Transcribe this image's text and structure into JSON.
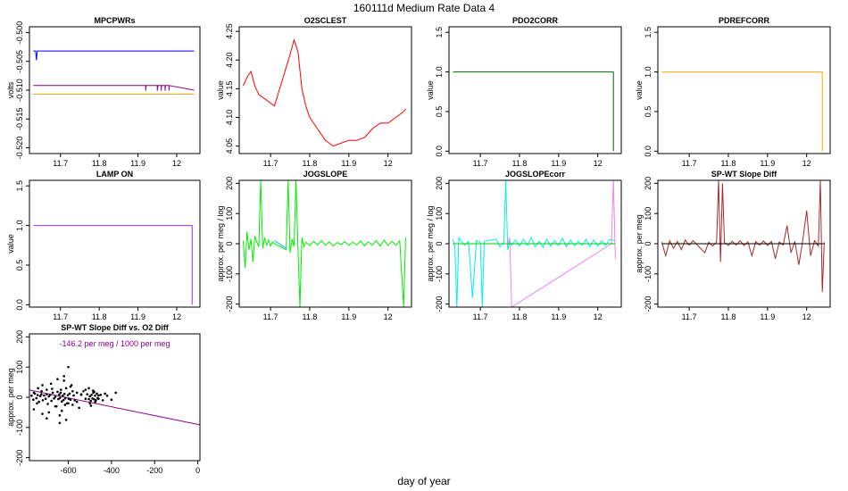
{
  "page": {
    "title": "160111d   Medium Rate Data 4",
    "xlabel": "day of year"
  },
  "chart_data": [
    {
      "type": "line",
      "title": "MPCPWRs",
      "ylabel": "volts",
      "xlim": [
        11.62,
        12.06
      ],
      "ylim": [
        -0.521,
        -0.499
      ],
      "xticks": [
        11.7,
        11.8,
        11.9,
        12.0
      ],
      "yticks": [
        -0.5,
        -0.505,
        -0.51,
        -0.515,
        -0.52
      ],
      "ytick_labels": [
        "-0.500",
        "-0.505",
        "-0.510",
        "-0.515",
        "-0.520"
      ],
      "series": [
        {
          "color": "#0000ff",
          "x": [
            11.63,
            11.636,
            11.638,
            11.64,
            11.643,
            12.045
          ],
          "y": [
            -0.5032,
            -0.5032,
            -0.5048,
            -0.5032,
            -0.5032,
            -0.5032
          ]
        },
        {
          "color": "#8b008b",
          "x": [
            11.63,
            11.92,
            11.92,
            11.921,
            11.95,
            11.95,
            11.952,
            11.96,
            11.96,
            11.961,
            11.97,
            11.97,
            11.971,
            11.98,
            11.98,
            11.981,
            12.045
          ],
          "y": [
            -0.5092,
            -0.5092,
            -0.5101,
            -0.5092,
            -0.5092,
            -0.5101,
            -0.5092,
            -0.5092,
            -0.5101,
            -0.5092,
            -0.5092,
            -0.5101,
            -0.5092,
            -0.5092,
            -0.5101,
            -0.5092,
            -0.51
          ]
        },
        {
          "color": "#ffa500",
          "x": [
            11.63,
            12.045
          ],
          "y": [
            -0.5107,
            -0.5107
          ]
        }
      ]
    },
    {
      "type": "line",
      "title": "O2SCLEST",
      "ylabel": "value",
      "xlim": [
        11.62,
        12.06
      ],
      "ylim": [
        4.037,
        4.258
      ],
      "xticks": [
        11.7,
        11.8,
        11.9,
        12.0
      ],
      "yticks": [
        4.05,
        4.1,
        4.15,
        4.2,
        4.25
      ],
      "ytick_labels": [
        "4.05",
        "4.10",
        "4.15",
        "4.20",
        "4.25"
      ],
      "series": [
        {
          "color": "#ff0000",
          "x": [
            11.63,
            11.64,
            11.65,
            11.66,
            11.67,
            11.68,
            11.69,
            11.7,
            11.71,
            11.75,
            11.76,
            11.77,
            11.78,
            11.79,
            11.8,
            11.82,
            11.84,
            11.86,
            11.88,
            11.9,
            11.92,
            11.94,
            11.96,
            11.98,
            12.0,
            12.02,
            12.04,
            12.045
          ],
          "y": [
            4.155,
            4.17,
            4.18,
            4.155,
            4.14,
            4.135,
            4.13,
            4.125,
            4.12,
            4.21,
            4.235,
            4.215,
            4.15,
            4.12,
            4.1,
            4.08,
            4.06,
            4.05,
            4.055,
            4.06,
            4.06,
            4.065,
            4.08,
            4.09,
            4.09,
            4.1,
            4.11,
            4.115
          ]
        }
      ]
    },
    {
      "type": "line",
      "title": "PDO2CORR",
      "ylabel": "value",
      "xlim": [
        11.62,
        12.06
      ],
      "ylim": [
        -0.03,
        1.57
      ],
      "xticks": [
        11.7,
        11.8,
        11.9,
        12.0
      ],
      "yticks": [
        0.0,
        0.5,
        1.0,
        1.5
      ],
      "ytick_labels": [
        "0.0",
        "0.5",
        "1.0",
        "1.5"
      ],
      "series": [
        {
          "color": "#006400",
          "x": [
            11.63,
            12.04,
            12.04
          ],
          "y": [
            1.0,
            1.0,
            0.0
          ]
        }
      ]
    },
    {
      "type": "line",
      "title": "PDREFCORR",
      "ylabel": "value",
      "xlim": [
        11.62,
        12.06
      ],
      "ylim": [
        -0.03,
        1.57
      ],
      "xticks": [
        11.7,
        11.8,
        11.9,
        12.0
      ],
      "yticks": [
        0.0,
        0.5,
        1.0,
        1.5
      ],
      "ytick_labels": [
        "0.0",
        "0.5",
        "1.0",
        "1.5"
      ],
      "series": [
        {
          "color": "#ffa500",
          "x": [
            11.63,
            12.04,
            12.04
          ],
          "y": [
            1.0,
            1.0,
            0.0
          ]
        }
      ]
    },
    {
      "type": "line",
      "title": "LAMP ON",
      "ylabel": "value",
      "xlim": [
        11.62,
        12.06
      ],
      "ylim": [
        -0.03,
        1.57
      ],
      "xticks": [
        11.7,
        11.8,
        11.9,
        12.0
      ],
      "yticks": [
        0.0,
        0.5,
        1.0,
        1.5
      ],
      "ytick_labels": [
        "0.0",
        "0.5",
        "1.0",
        "1.5"
      ],
      "series": [
        {
          "color": "#9b30ff",
          "x": [
            11.63,
            12.04,
            12.04
          ],
          "y": [
            1.0,
            1.0,
            0.0
          ]
        }
      ]
    },
    {
      "type": "line",
      "title": "JOGSLOPE",
      "ylabel": "approx. per meg / log",
      "xlim": [
        11.62,
        12.06
      ],
      "ylim": [
        -210,
        210
      ],
      "xticks": [
        11.7,
        11.8,
        11.9,
        12.0
      ],
      "yticks": [
        -200,
        -100,
        0,
        100,
        200
      ],
      "ytick_labels": [
        "-200",
        "-100",
        "0",
        "100",
        "200"
      ],
      "series": [
        {
          "color": "#00ee00",
          "x": [
            11.63,
            11.635,
            11.64,
            11.645,
            11.65,
            11.655,
            11.66,
            11.665,
            11.67,
            11.675,
            11.68,
            11.685,
            11.69,
            11.695,
            11.7,
            11.705,
            11.71,
            11.74,
            11.745,
            11.75,
            11.755,
            11.76,
            11.765,
            11.77,
            11.775,
            11.78,
            11.785,
            11.79,
            11.8,
            11.81,
            11.82,
            11.83,
            11.84,
            11.85,
            11.86,
            11.87,
            11.88,
            11.89,
            11.9,
            11.91,
            11.92,
            11.93,
            11.94,
            11.95,
            11.96,
            11.97,
            11.98,
            11.99,
            12.0,
            12.01,
            12.02,
            12.03,
            12.04,
            12.045
          ],
          "y": [
            10,
            -80,
            40,
            -20,
            15,
            -60,
            25,
            5,
            -10,
            210,
            -15,
            20,
            -5,
            12,
            -8,
            6,
            0,
            -20,
            210,
            -30,
            15,
            -10,
            210,
            -15,
            -210,
            20,
            -10,
            5,
            -6,
            8,
            -4,
            10,
            -5,
            6,
            -8,
            4,
            -3,
            7,
            -6,
            5,
            -4,
            9,
            -7,
            6,
            -5,
            10,
            -8,
            12,
            -6,
            8,
            -5,
            10,
            -210,
            20
          ]
        },
        {
          "color": "#00bfff",
          "x": [
            11.71,
            11.74
          ],
          "y": [
            10,
            -15
          ]
        }
      ]
    },
    {
      "type": "line",
      "title": "JOGSLOPEcorr",
      "ylabel": "approx. per meg / log",
      "xlim": [
        11.62,
        12.06
      ],
      "ylim": [
        -210,
        210
      ],
      "xticks": [
        11.7,
        11.8,
        11.9,
        12.0
      ],
      "yticks": [
        -200,
        -100,
        0,
        100,
        200
      ],
      "ytick_labels": [
        "-200",
        "-100",
        "0",
        "100",
        "200"
      ],
      "series": [
        {
          "color": "#00eeee",
          "x": [
            11.63,
            11.635,
            11.64,
            11.645,
            11.65,
            11.66,
            11.67,
            11.68,
            11.69,
            11.7,
            11.705,
            11.71,
            11.74,
            11.75,
            11.76,
            11.765,
            11.77,
            11.775,
            11.78,
            11.79,
            11.8,
            11.81,
            11.82,
            11.83,
            11.84,
            11.85,
            11.86,
            11.87,
            11.88,
            11.89,
            11.9,
            11.91,
            11.92,
            11.93,
            11.94,
            11.95,
            11.96,
            11.97,
            11.98,
            11.99,
            12.0,
            12.01,
            12.02,
            12.03,
            12.045
          ],
          "y": [
            15,
            -10,
            -210,
            20,
            10,
            -5,
            8,
            -180,
            10,
            5,
            -210,
            8,
            15,
            -10,
            5,
            210,
            -20,
            10,
            -5,
            12,
            -8,
            15,
            -6,
            20,
            -10,
            8,
            -12,
            15,
            -8,
            10,
            -6,
            18,
            -10,
            12,
            -7,
            9,
            -5,
            15,
            -10,
            12,
            -8,
            10,
            -6,
            14,
            10
          ]
        },
        {
          "color": "#ee82ee",
          "x": [
            11.77,
            11.775,
            11.78,
            12.035,
            12.04,
            12.045
          ],
          "y": [
            0,
            20,
            -210,
            0,
            210,
            -50
          ]
        },
        {
          "color": "#00cc00",
          "x": [
            11.63,
            12.045
          ],
          "y": [
            0,
            0
          ]
        }
      ]
    },
    {
      "type": "line",
      "title": "SP-WT Slope Diff",
      "ylabel": "approx. per meg",
      "xlim": [
        11.62,
        12.06
      ],
      "ylim": [
        -210,
        210
      ],
      "xticks": [
        11.7,
        11.8,
        11.9,
        12.0
      ],
      "yticks": [
        -200,
        -100,
        0,
        100,
        200
      ],
      "ytick_labels": [
        "-200",
        "-100",
        "0",
        "100",
        "200"
      ],
      "series": [
        {
          "color": "#a52a2a",
          "x": [
            11.63,
            11.64,
            11.65,
            11.66,
            11.67,
            11.68,
            11.69,
            11.7,
            11.71,
            11.74,
            11.75,
            11.76,
            11.77,
            11.775,
            11.78,
            11.785,
            11.79,
            11.8,
            11.81,
            11.82,
            11.83,
            11.84,
            11.85,
            11.86,
            11.87,
            11.88,
            11.89,
            11.9,
            11.91,
            11.92,
            11.93,
            11.94,
            11.95,
            11.96,
            11.97,
            11.98,
            11.99,
            12.0,
            12.01,
            12.02,
            12.03,
            12.035,
            12.04,
            12.045
          ],
          "y": [
            5,
            -40,
            10,
            -15,
            8,
            -20,
            12,
            -5,
            10,
            -30,
            5,
            -8,
            6,
            210,
            -60,
            200,
            4,
            -6,
            8,
            -4,
            10,
            -6,
            6,
            -40,
            7,
            -5,
            9,
            -6,
            8,
            -50,
            6,
            -4,
            60,
            -30,
            8,
            -70,
            10,
            110,
            -40,
            10,
            -8,
            210,
            -160,
            5
          ]
        },
        {
          "color": "#000000",
          "x": [
            11.63,
            12.045
          ],
          "y": [
            0,
            0
          ]
        }
      ]
    },
    {
      "type": "scatter",
      "title": "SP-WT Slope Diff vs. O2 Diff",
      "ylabel": "approx. per meg",
      "annotation": "-146.2 per meg / 1000 per meg",
      "xlim": [
        -780,
        10
      ],
      "ylim": [
        -210,
        210
      ],
      "xticks": [
        -600,
        -400,
        -200,
        0
      ],
      "yticks": [
        -200,
        -100,
        0,
        100,
        200
      ],
      "ytick_labels": [
        "-200",
        "-100",
        "0",
        "100",
        "200"
      ],
      "fit": {
        "color": "#8b008b",
        "slope": -0.1462,
        "intercept": -90
      },
      "point_color": "#000000",
      "x": [
        -770,
        -762,
        -755,
        -748,
        -742,
        -736,
        -730,
        -724,
        -718,
        -712,
        -705,
        -700,
        -695,
        -690,
        -684,
        -678,
        -672,
        -666,
        -660,
        -655,
        -650,
        -646,
        -642,
        -638,
        -634,
        -630,
        -626,
        -622,
        -618,
        -614,
        -610,
        -606,
        -602,
        -598,
        -594,
        -590,
        -585,
        -580,
        -575,
        -570,
        -560,
        -550,
        -540,
        -530,
        -520,
        -512,
        -505,
        -500,
        -496,
        -492,
        -488,
        -484,
        -480,
        -476,
        -472,
        -468,
        -464,
        -460,
        -450,
        -440,
        -430,
        -420,
        -400,
        -380,
        -760,
        -740,
        -720,
        -700,
        -680,
        -660,
        -640,
        -620,
        -600,
        -580,
        -560,
        -540,
        -520,
        -500,
        -480,
        -460,
        -640,
        -620,
        -600,
        -700,
        -650,
        -630,
        -610,
        -590,
        -720,
        -690,
        -675,
        -635,
        -615,
        -505,
        -495,
        -485,
        -475,
        -760,
        -745,
        -725
      ],
      "y": [
        5,
        -8,
        12,
        -3,
        7,
        -15,
        4,
        20,
        -10,
        6,
        -5,
        10,
        -22,
        3,
        8,
        -12,
        15,
        -4,
        2,
        -30,
        18,
        -6,
        9,
        -2,
        25,
        -14,
        5,
        -9,
        11,
        -3,
        30,
        -20,
        7,
        -5,
        12,
        -8,
        40,
        -25,
        6,
        -10,
        15,
        -35,
        8,
        20,
        -5,
        10,
        -6,
        3,
        -12,
        8,
        -4,
        15,
        -7,
        5,
        -10,
        12,
        -3,
        6,
        8,
        -10,
        12,
        5,
        -8,
        15,
        -40,
        30,
        -55,
        25,
        45,
        -30,
        -60,
        55,
        -20,
        20,
        -15,
        10,
        25,
        -20,
        18,
        -5,
        -85,
        70,
        100,
        -70,
        60,
        -45,
        -75,
        35,
        40,
        -50,
        28,
        15,
        -25,
        30,
        -28,
        22,
        -15,
        15,
        -20,
        10
      ]
    }
  ]
}
